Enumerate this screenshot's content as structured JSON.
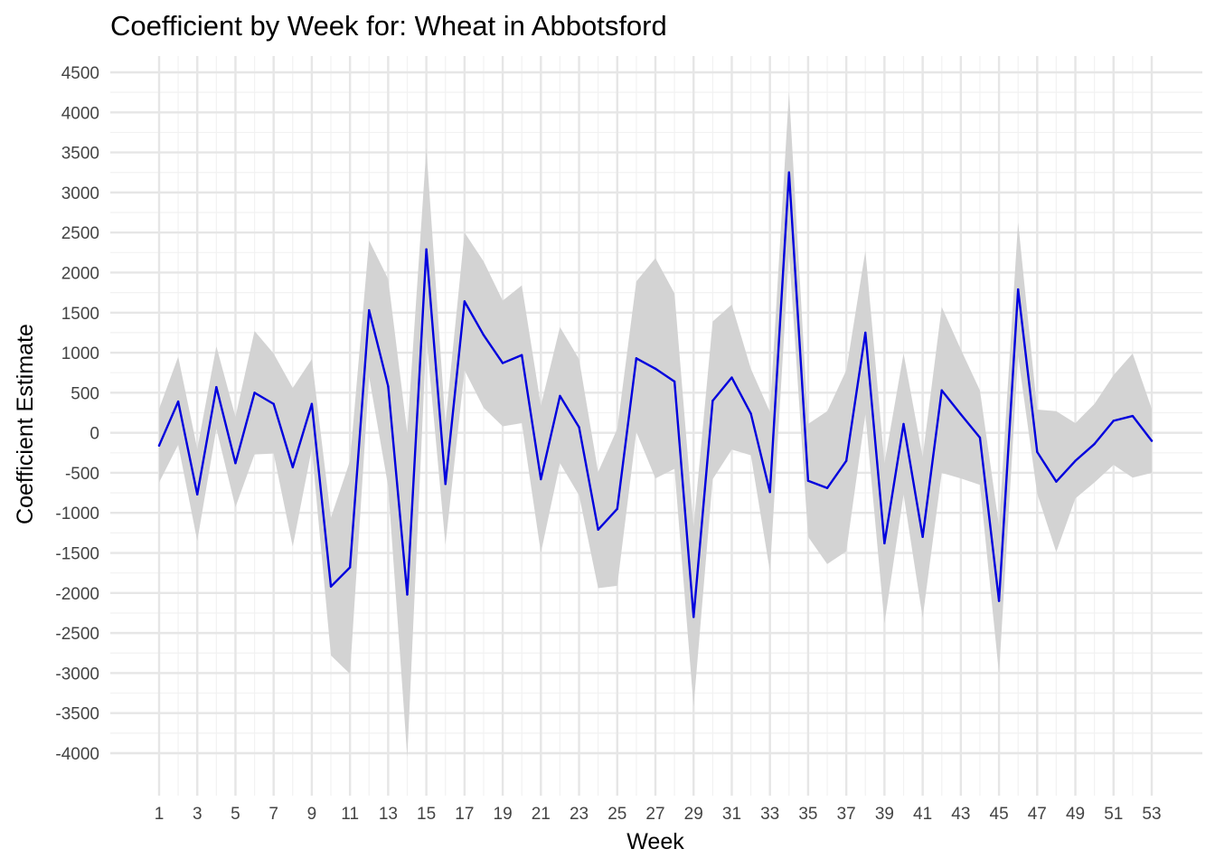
{
  "chart_data": {
    "type": "line",
    "title": "Coefficient by Week for: Wheat in Abbotsford",
    "xlabel": "Week",
    "ylabel": "Coefficient Estimate",
    "xlim": [
      1,
      53
    ],
    "ylim": [
      -4000,
      4500
    ],
    "x_ticks": [
      1,
      3,
      5,
      7,
      9,
      11,
      13,
      15,
      17,
      19,
      21,
      23,
      25,
      27,
      29,
      31,
      33,
      35,
      37,
      39,
      41,
      43,
      45,
      47,
      49,
      51,
      53
    ],
    "y_ticks": [
      -4000,
      -3500,
      -3000,
      -2500,
      -2000,
      -1500,
      -1000,
      -500,
      0,
      500,
      1000,
      1500,
      2000,
      2500,
      3000,
      3500,
      4000,
      4500
    ],
    "grid": true,
    "legend": "none",
    "line_color": "#0000dd",
    "band_color": "#d3d3d3",
    "series": [
      {
        "x": [
          1,
          2,
          3,
          4,
          5,
          6,
          7,
          8,
          9,
          10,
          11,
          12,
          13,
          14,
          15,
          16,
          17,
          18,
          19,
          20,
          21,
          22,
          23,
          24,
          25,
          26,
          27,
          28,
          29,
          30,
          31,
          32,
          33,
          34,
          35,
          36,
          37,
          38,
          39,
          40,
          41,
          42,
          43,
          44,
          45,
          46,
          47,
          48,
          49,
          50,
          51,
          52,
          53
        ],
        "values": [
          -160,
          390,
          -770,
          570,
          -380,
          500,
          360,
          -430,
          360,
          -1920,
          -1680,
          1530,
          580,
          -2020,
          2290,
          -640,
          1640,
          1220,
          870,
          970,
          -580,
          460,
          70,
          -1210,
          -950,
          930,
          800,
          640,
          -2300,
          400,
          690,
          240,
          -740,
          3250,
          -600,
          -690,
          -350,
          1250,
          -1380,
          110,
          -1300,
          530,
          230,
          -60,
          -2100,
          1790,
          -240,
          -610,
          -350,
          -140,
          150,
          210,
          -100
        ],
        "lower": [
          -620,
          -150,
          -1350,
          50,
          -930,
          -270,
          -260,
          -1420,
          -200,
          -2780,
          -3010,
          700,
          -670,
          -4050,
          1200,
          -1400,
          780,
          310,
          80,
          120,
          -1500,
          -380,
          -780,
          -1940,
          -1910,
          10,
          -570,
          -450,
          -3420,
          -580,
          -210,
          -280,
          -1730,
          2250,
          -1300,
          -1640,
          -1480,
          230,
          -2380,
          -770,
          -2310,
          -500,
          -570,
          -650,
          -3010,
          960,
          -760,
          -1490,
          -820,
          -620,
          -400,
          -560,
          -500
        ],
        "upper": [
          300,
          950,
          -200,
          1080,
          200,
          1270,
          990,
          560,
          920,
          -1060,
          -350,
          2400,
          1920,
          0,
          3550,
          120,
          2500,
          2140,
          1650,
          1840,
          340,
          1320,
          920,
          -490,
          50,
          1890,
          2180,
          1740,
          -1170,
          1390,
          1600,
          800,
          260,
          4260,
          110,
          270,
          780,
          2270,
          -380,
          990,
          -300,
          1570,
          1040,
          530,
          -1160,
          2630,
          290,
          270,
          120,
          360,
          720,
          990,
          300
        ]
      }
    ]
  }
}
